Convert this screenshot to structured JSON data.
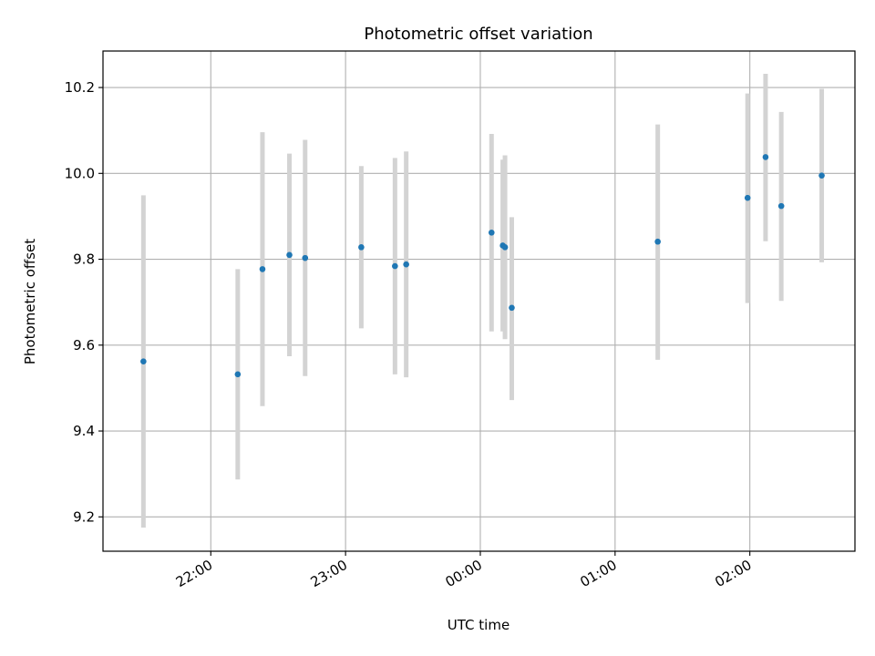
{
  "chart_data": {
    "type": "scatter",
    "title": "Photometric offset variation",
    "xlabel": "UTC time",
    "ylabel": "Photometric offset",
    "x_axis_type": "time",
    "x_tick_labels": [
      "22:00",
      "23:00",
      "00:00",
      "01:00",
      "02:00"
    ],
    "x_tick_times_hours": [
      22,
      23,
      24,
      25,
      26
    ],
    "xlim_hours": [
      21.2,
      26.78
    ],
    "y_ticks": [
      9.2,
      9.4,
      9.6,
      9.8,
      10.0,
      10.2
    ],
    "ylim": [
      9.12,
      10.285
    ],
    "grid": true,
    "error_bar_color": "#d3d3d3",
    "point_color": "#1f77b4",
    "points": [
      {
        "time": "21:30",
        "y": 9.562,
        "y_low": 9.175,
        "y_high": 9.949
      },
      {
        "time": "22:12",
        "y": 9.532,
        "y_low": 9.287,
        "y_high": 9.777
      },
      {
        "time": "22:23",
        "y": 9.777,
        "y_low": 9.458,
        "y_high": 10.096
      },
      {
        "time": "22:35",
        "y": 9.81,
        "y_low": 9.574,
        "y_high": 10.046
      },
      {
        "time": "22:42",
        "y": 9.803,
        "y_low": 9.528,
        "y_high": 10.078
      },
      {
        "time": "23:07",
        "y": 9.828,
        "y_low": 9.639,
        "y_high": 10.017
      },
      {
        "time": "23:22",
        "y": 9.784,
        "y_low": 9.532,
        "y_high": 10.036
      },
      {
        "time": "23:27",
        "y": 9.788,
        "y_low": 9.525,
        "y_high": 10.051
      },
      {
        "time": "00:05",
        "y": 9.862,
        "y_low": 9.632,
        "y_high": 10.092
      },
      {
        "time": "00:10",
        "y": 9.832,
        "y_low": 9.632,
        "y_high": 10.032
      },
      {
        "time": "00:11",
        "y": 9.828,
        "y_low": 9.614,
        "y_high": 10.042
      },
      {
        "time": "00:14",
        "y": 9.687,
        "y_low": 9.472,
        "y_high": 9.898
      },
      {
        "time": "01:19",
        "y": 9.841,
        "y_low": 9.566,
        "y_high": 10.114
      },
      {
        "time": "01:59",
        "y": 9.943,
        "y_low": 9.698,
        "y_high": 10.186
      },
      {
        "time": "02:07",
        "y": 10.038,
        "y_low": 9.842,
        "y_high": 10.232
      },
      {
        "time": "02:14",
        "y": 9.924,
        "y_low": 9.703,
        "y_high": 10.143
      },
      {
        "time": "02:32",
        "y": 9.995,
        "y_low": 9.793,
        "y_high": 10.197
      }
    ]
  }
}
